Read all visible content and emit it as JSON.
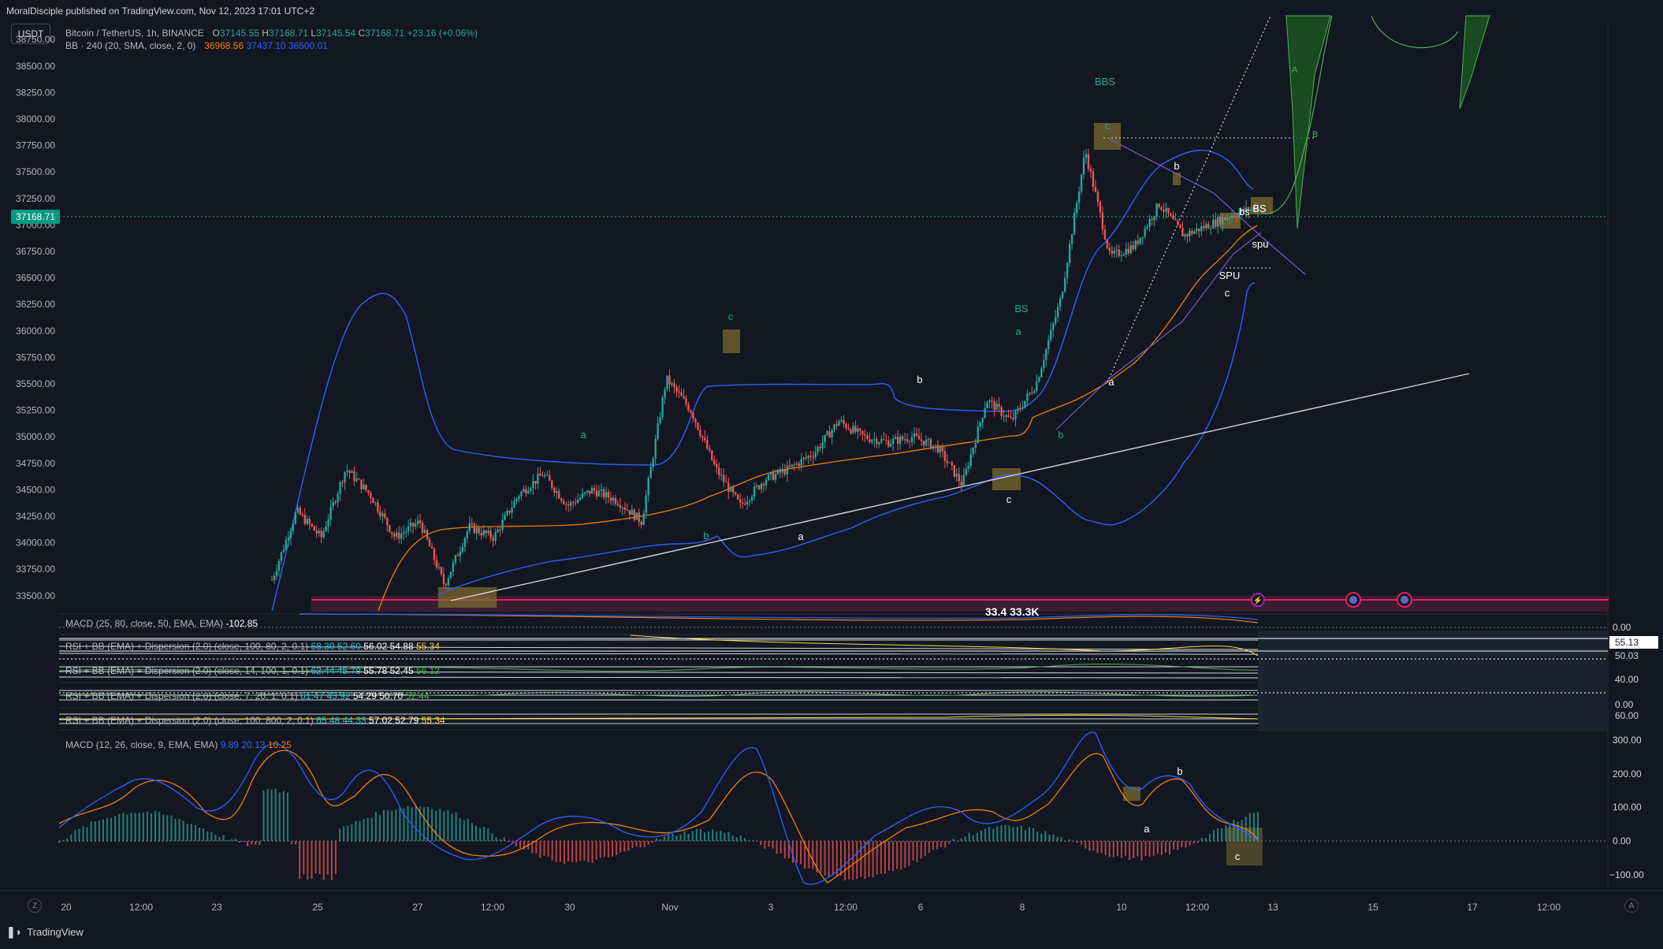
{
  "header": {
    "publisher": "MoralDisciple published on TradingView.com, Nov 12, 2023 17:01 UTC+2"
  },
  "symbol_button": "USDT",
  "legend_main": {
    "name": "Bitcoin / TetherUS, 1h, BINANCE",
    "o_label": "O",
    "o": "37145.55",
    "h_label": "H",
    "h": "37168.71",
    "l_label": "L",
    "l": "37145.54",
    "c_label": "C",
    "c": "37168.71",
    "change": "+23.16 (+0.06%)"
  },
  "legend_bb": {
    "name": "BB · 240 (20, SMA, close, 2, 0)",
    "v1": "36968.56",
    "v2": "37437.10",
    "v3": "36500.01"
  },
  "panes": [
    {
      "title": "MACD (25, 80, close, 50, EMA, EMA)",
      "values": [
        "-102.85"
      ]
    },
    {
      "title": "RSI + BB (EMA) + Dispersion (2.0) (close, 100, 80, 2, 0.1)",
      "values": [
        "58.30",
        "52.60",
        "56.02",
        "54.88",
        "55.34"
      ]
    },
    {
      "title": "RSI + BB (EMA) + Dispersion (2.0) (close, 14, 100, 1, 0.1)",
      "values": [
        "62.44",
        "45.79",
        "55.78",
        "52.45",
        "56.12"
      ]
    },
    {
      "title": "RSI + BB (EMA) + Dispersion (2.0) (close, 7, 20, 1, 0.1)",
      "values": [
        "61.47",
        "43.92",
        "54.29",
        "50.70",
        "52.44"
      ]
    },
    {
      "title": "RSI + BB (EMA) + Dispersion (2.0) (close, 100, 800, 2, 0.1)",
      "values": [
        "65.48",
        "44.33",
        "57.02",
        "52.79",
        "55.34"
      ]
    },
    {
      "title": "MACD (12, 26, close, 9, EMA, EMA)",
      "values": [
        "9.89",
        "20.13",
        "10.25"
      ]
    }
  ],
  "price_axis": {
    "ticks": [
      "38750.00",
      "38500.00",
      "38250.00",
      "38000.00",
      "37750.00",
      "37500.00",
      "37250.00",
      "37000.00",
      "36750.00",
      "36500.00",
      "36250.00",
      "36000.00",
      "35750.00",
      "35500.00",
      "35250.00",
      "35000.00",
      "34750.00",
      "34500.00",
      "34250.00",
      "34000.00",
      "33750.00",
      "33500.00"
    ],
    "current_price": "37168.71"
  },
  "pane_axis_labels": {
    "macd1": "0.00",
    "rsi1_a": "55.13",
    "rsi1_b": "50.03",
    "rsi2": "40.00",
    "rsi3": "0.00",
    "rsi4": "60.00",
    "macd2": [
      "300.00",
      "200.00",
      "100.00",
      "0.00",
      "−100.00"
    ]
  },
  "time_axis": [
    "20",
    "12:00",
    "23",
    "25",
    "27",
    "12:00",
    "30",
    "Nov",
    "3",
    "12:00",
    "6",
    "8",
    "10",
    "12:00",
    "13",
    "15",
    "17",
    "12:00"
  ],
  "annotations": {
    "wave_cyan": [
      "c",
      "a",
      "b",
      "BS",
      "a",
      "b",
      "BBS",
      "c"
    ],
    "wave_white": [
      "b",
      "a",
      "c",
      "a",
      "b",
      "c",
      "bs",
      "BS",
      "spu",
      "SPU"
    ],
    "projection": [
      "A",
      "B"
    ],
    "macd_waves": [
      "b",
      "a",
      "c"
    ],
    "banner_partial": "33.4 33.3K"
  },
  "footer": {
    "brand": "TradingView",
    "zoom_left": "Z",
    "zoom_right": "A"
  },
  "colors": {
    "background": "#131722",
    "up": "#26a69a",
    "down": "#ef5350",
    "bb_band": "#2962ff",
    "bb_basis": "#f57c00",
    "accent_green": "#089981",
    "label_cyan": "#22ab94",
    "highlight_box": "#7b6a2e"
  },
  "chart_data": {
    "type": "candlestick",
    "symbol": "Bitcoin / TetherUS",
    "interval": "1h",
    "exchange": "BINANCE",
    "xaxis_ticks": [
      "20",
      "12:00",
      "23",
      "25",
      "27",
      "12:00",
      "30",
      "Nov",
      "3",
      "12:00",
      "6",
      "8",
      "10",
      "12:00",
      "13",
      "15",
      "17",
      "12:00"
    ],
    "ylim": [
      33350,
      38900
    ],
    "ohlc_last": {
      "open": 37145.55,
      "high": 37168.71,
      "low": 37145.54,
      "close": 37168.71
    },
    "price_path": [
      [
        0,
        33650
      ],
      [
        3,
        34300
      ],
      [
        6,
        34050
      ],
      [
        9,
        34700
      ],
      [
        12,
        34450
      ],
      [
        15,
        34050
      ],
      [
        18,
        34200
      ],
      [
        21,
        33600
      ],
      [
        24,
        34150
      ],
      [
        27,
        34050
      ],
      [
        30,
        34450
      ],
      [
        33,
        34650
      ],
      [
        36,
        34350
      ],
      [
        39,
        34500
      ],
      [
        42,
        34400
      ],
      [
        45,
        34200
      ],
      [
        48,
        35550
      ],
      [
        51,
        35250
      ],
      [
        54,
        34700
      ],
      [
        57,
        34350
      ],
      [
        60,
        34600
      ],
      [
        63,
        34700
      ],
      [
        66,
        34850
      ],
      [
        69,
        35150
      ],
      [
        72,
        35000
      ],
      [
        75,
        34950
      ],
      [
        78,
        35000
      ],
      [
        81,
        34900
      ],
      [
        84,
        34550
      ],
      [
        87,
        35350
      ],
      [
        90,
        35150
      ],
      [
        93,
        35500
      ],
      [
        96,
        36300
      ],
      [
        99,
        37700
      ],
      [
        102,
        36700
      ],
      [
        105,
        36800
      ],
      [
        108,
        37200
      ],
      [
        111,
        36900
      ],
      [
        114,
        37000
      ],
      [
        117,
        37100
      ],
      [
        120,
        37168.71
      ]
    ]
  }
}
